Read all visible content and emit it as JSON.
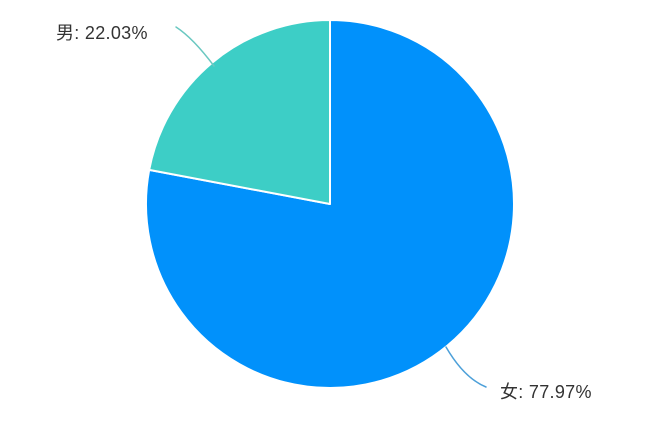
{
  "chart_data": {
    "type": "pie",
    "title": "",
    "categories": [
      "女",
      "男"
    ],
    "values": [
      77.97,
      22.03
    ],
    "unit": "%",
    "labels": [
      "女: 77.97%",
      "男: 22.03%"
    ],
    "colors": [
      "#0191fb",
      "#3dcec6"
    ],
    "leader_line_colors": [
      "#4da0d9",
      "#6ac8c1"
    ],
    "slice_border_color": "#ffffff",
    "slice_border_width": 2,
    "start_angle": 90,
    "clockwise": true,
    "legend_position": "none",
    "label_position": "outside",
    "label_text_color": "#333333",
    "background_color": "#ffffff"
  }
}
